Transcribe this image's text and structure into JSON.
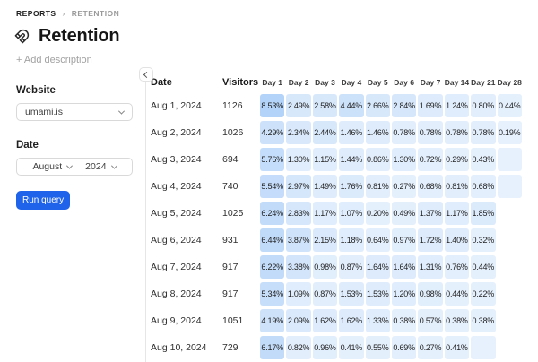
{
  "breadcrumb": {
    "section": "REPORTS",
    "separator": "›",
    "page": "RETENTION"
  },
  "header": {
    "title": "Retention",
    "icon": "magnet-icon",
    "add_description_label": "+ Add description"
  },
  "filters": {
    "website_label": "Website",
    "website_value": "umami.is",
    "date_label": "Date",
    "month_value": "August",
    "year_value": "2024",
    "run_query_label": "Run query"
  },
  "colors": {
    "accent_blue": "#2680eb",
    "heatmap_base_rgb": "38,128,235",
    "run_button_bg": "#1e63e9",
    "run_button_text": "#ffffff",
    "divider": "#e6e6e6",
    "muted_text": "#9a9a9a",
    "heading_text": "#161616"
  },
  "table": {
    "columns": [
      "Date",
      "Visitors",
      "Day 1",
      "Day 2",
      "Day 3",
      "Day 4",
      "Day 5",
      "Day 6",
      "Day 7",
      "Day 14",
      "Day 21",
      "Day 28"
    ],
    "max_value": 8.53,
    "rows": [
      {
        "date": "Aug 1, 2024",
        "visitors": 1126,
        "values": [
          8.53,
          2.49,
          2.58,
          4.44,
          2.66,
          2.84,
          1.69,
          1.24,
          0.8,
          0.44
        ]
      },
      {
        "date": "Aug 2, 2024",
        "visitors": 1026,
        "values": [
          4.29,
          2.34,
          2.44,
          1.46,
          1.46,
          0.78,
          0.78,
          0.78,
          0.78,
          0.19
        ]
      },
      {
        "date": "Aug 3, 2024",
        "visitors": 694,
        "values": [
          5.76,
          1.3,
          1.15,
          1.44,
          0.86,
          1.3,
          0.72,
          0.29,
          0.43,
          0
        ]
      },
      {
        "date": "Aug 4, 2024",
        "visitors": 740,
        "values": [
          5.54,
          2.97,
          1.49,
          1.76,
          0.81,
          0.27,
          0.68,
          0.81,
          0.68,
          0
        ]
      },
      {
        "date": "Aug 5, 2024",
        "visitors": 1025,
        "values": [
          6.24,
          2.83,
          1.17,
          1.07,
          0.2,
          0.49,
          1.37,
          1.17,
          1.85,
          null
        ]
      },
      {
        "date": "Aug 6, 2024",
        "visitors": 931,
        "values": [
          6.44,
          3.87,
          2.15,
          1.18,
          0.64,
          0.97,
          1.72,
          1.4,
          0.32,
          null
        ]
      },
      {
        "date": "Aug 7, 2024",
        "visitors": 917,
        "values": [
          6.22,
          3.38,
          0.98,
          0.87,
          1.64,
          1.64,
          1.31,
          0.76,
          0.44,
          null
        ]
      },
      {
        "date": "Aug 8, 2024",
        "visitors": 917,
        "values": [
          5.34,
          1.09,
          0.87,
          1.53,
          1.53,
          1.2,
          0.98,
          0.44,
          0.22,
          null
        ]
      },
      {
        "date": "Aug 9, 2024",
        "visitors": 1051,
        "values": [
          4.19,
          2.09,
          1.62,
          1.62,
          1.33,
          0.38,
          0.57,
          0.38,
          0.38,
          null
        ]
      },
      {
        "date": "Aug 10, 2024",
        "visitors": 729,
        "values": [
          6.17,
          0.82,
          0.96,
          0.41,
          0.55,
          0.69,
          0.27,
          0.41,
          0,
          null
        ]
      }
    ]
  }
}
